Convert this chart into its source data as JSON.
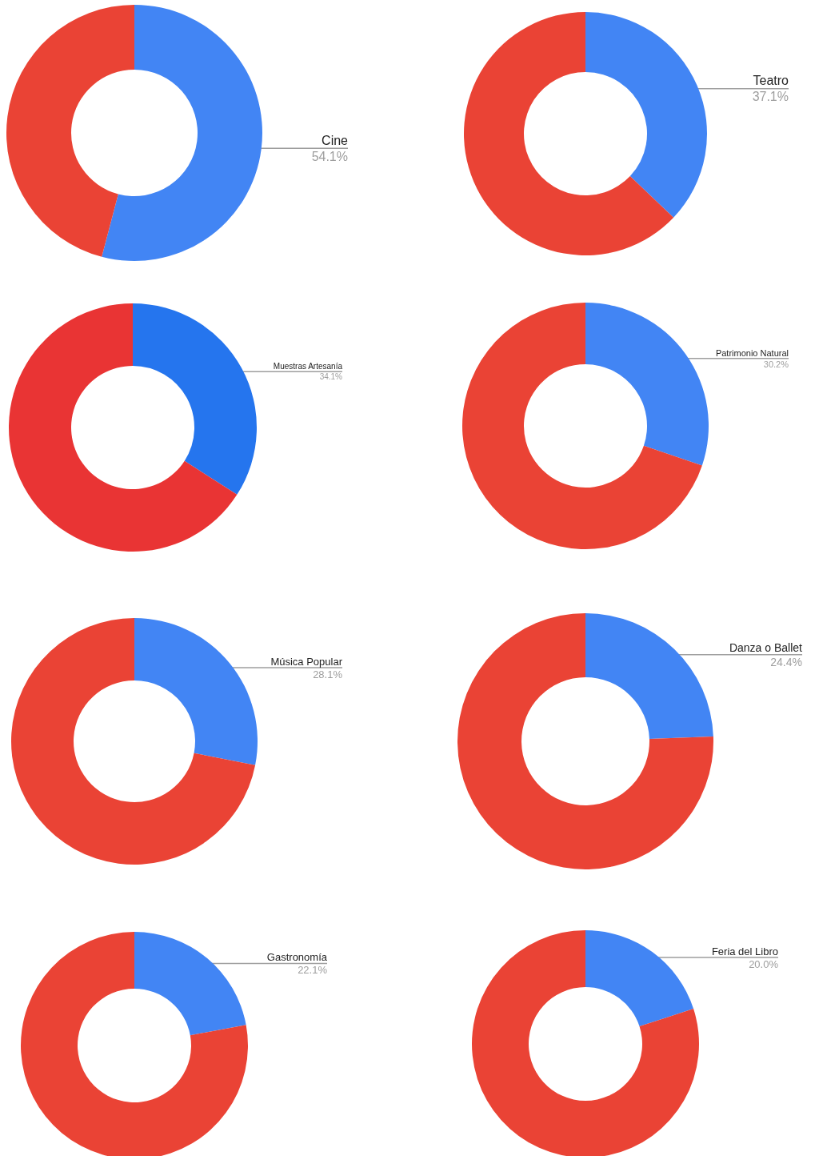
{
  "chart_data": [
    {
      "type": "donut",
      "categories": [
        "Cine",
        null
      ],
      "values": [
        54.1,
        45.9
      ],
      "colors": [
        "#4285f4",
        "#ea4335"
      ],
      "value_labels": [
        "54.1%",
        null
      ]
    },
    {
      "type": "donut",
      "categories": [
        "Teatro",
        null
      ],
      "values": [
        37.1,
        62.9
      ],
      "colors": [
        "#4285f4",
        "#ea4335"
      ],
      "value_labels": [
        "37.1%",
        null
      ]
    },
    {
      "type": "donut",
      "categories": [
        "Muestras Artesanía",
        null
      ],
      "values": [
        34.1,
        65.9
      ],
      "colors": [
        "#2575ee",
        "#e93434"
      ],
      "value_labels": [
        "34.1%",
        null
      ]
    },
    {
      "type": "donut",
      "categories": [
        "Patrimonio Natural",
        null
      ],
      "values": [
        30.2,
        69.8
      ],
      "colors": [
        "#4285f4",
        "#ea4335"
      ],
      "value_labels": [
        "30.2%",
        null
      ]
    },
    {
      "type": "donut",
      "categories": [
        "Música Popular",
        null
      ],
      "values": [
        28.1,
        71.9
      ],
      "colors": [
        "#4285f4",
        "#ea4335"
      ],
      "value_labels": [
        "28.1%",
        null
      ]
    },
    {
      "type": "donut",
      "categories": [
        "Danza o Ballet",
        null
      ],
      "values": [
        24.4,
        75.6
      ],
      "colors": [
        "#4285f4",
        "#ea4335"
      ],
      "value_labels": [
        "24.4%",
        null
      ]
    },
    {
      "type": "donut",
      "categories": [
        "Gastronomía",
        null
      ],
      "values": [
        22.1,
        77.9
      ],
      "colors": [
        "#4285f4",
        "#ea4335"
      ],
      "value_labels": [
        "22.1%",
        null
      ]
    },
    {
      "type": "donut",
      "categories": [
        "Feria del Libro",
        null
      ],
      "values": [
        20.0,
        80.0
      ],
      "colors": [
        "#4285f4",
        "#ea4335"
      ],
      "value_labels": [
        "20.0%",
        null
      ]
    }
  ]
}
